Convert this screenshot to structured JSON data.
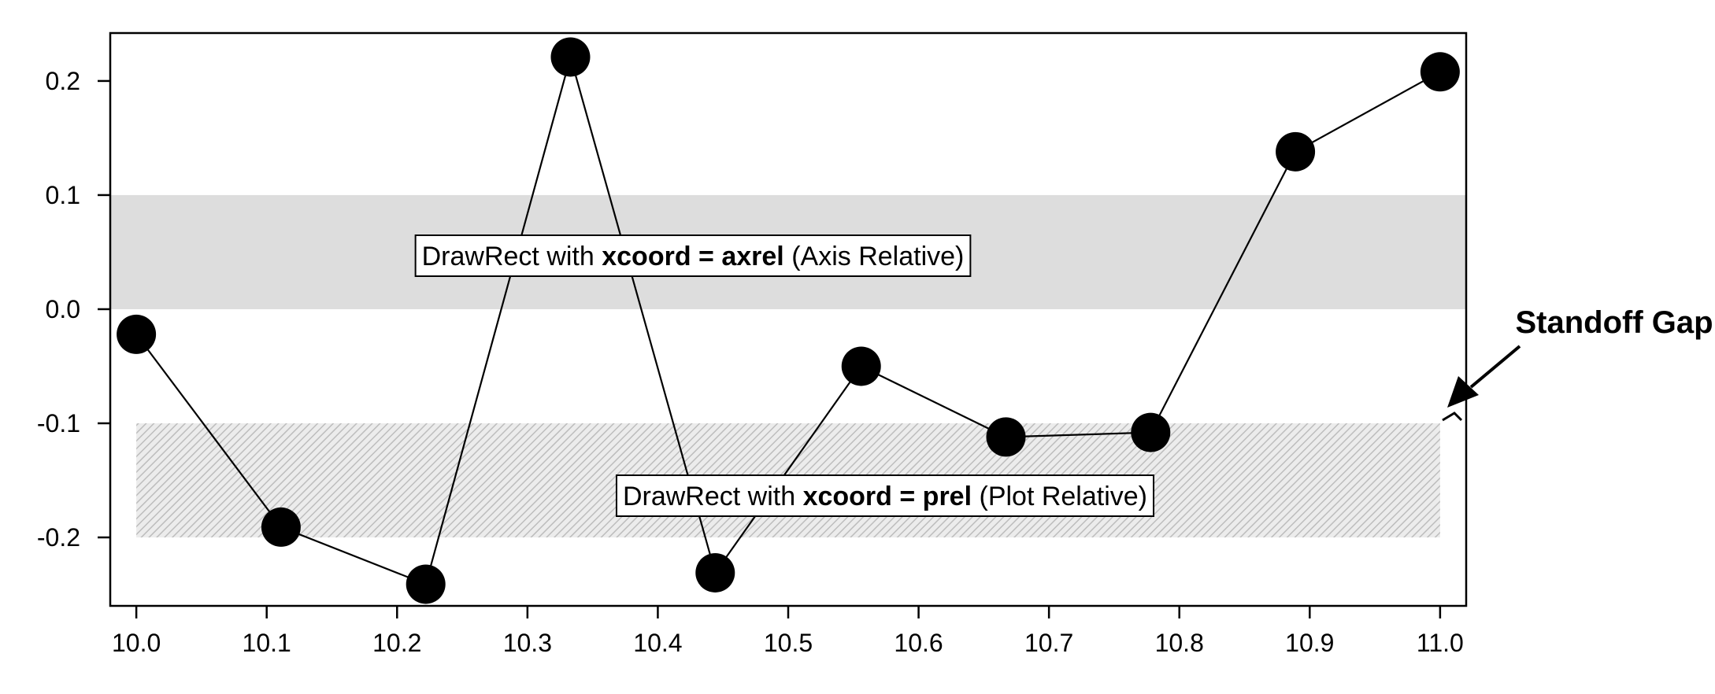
{
  "chart_data": {
    "type": "line",
    "title": "",
    "xlabel": "",
    "ylabel": "",
    "xlim": [
      9.98,
      11.02
    ],
    "ylim": [
      -0.26,
      0.242
    ],
    "x_ticks": [
      10.0,
      10.1,
      10.2,
      10.3,
      10.4,
      10.5,
      10.6,
      10.7,
      10.8,
      10.9,
      11.0
    ],
    "x_tick_labels": [
      "10.0",
      "10.1",
      "10.2",
      "10.3",
      "10.4",
      "10.5",
      "10.6",
      "10.7",
      "10.8",
      "10.9",
      "11.0"
    ],
    "y_ticks": [
      0.2,
      0.1,
      0.0,
      -0.1,
      -0.2
    ],
    "y_tick_labels": [
      "0.2",
      "0.1",
      "0.0",
      "-0.1",
      "-0.2"
    ],
    "grid": false,
    "legend": "none",
    "series": [
      {
        "x": [
          10.0,
          10.111,
          10.222,
          10.333,
          10.444,
          10.556,
          10.667,
          10.778,
          10.889,
          11.0
        ],
        "values": [
          -0.022,
          -0.191,
          -0.241,
          0.221,
          -0.231,
          -0.05,
          -0.112,
          -0.108,
          0.138,
          0.208
        ],
        "color": "#000000",
        "marker": "filled-circle"
      }
    ],
    "bands": [
      {
        "mode": "axrel",
        "y_range": [
          0.0,
          0.1
        ],
        "fill": "#dddddd",
        "pattern": "solid",
        "label_prefix": "DrawRect with ",
        "label_bold": "xcoord = axrel",
        "label_suffix": " (Axis Relative)"
      },
      {
        "mode": "prel",
        "x_range": [
          10.0,
          11.0
        ],
        "y_range": [
          -0.2,
          -0.1
        ],
        "fill": "#c8c8c8",
        "pattern": "diagonal-hatch",
        "label_prefix": "DrawRect with ",
        "label_bold": "xcoord = prel",
        "label_suffix": " (Plot Relative)"
      }
    ],
    "annotations": [
      {
        "text": "Standoff Gap",
        "style": "bold",
        "arrow_target": "right-edge-of-prel-band"
      }
    ]
  }
}
